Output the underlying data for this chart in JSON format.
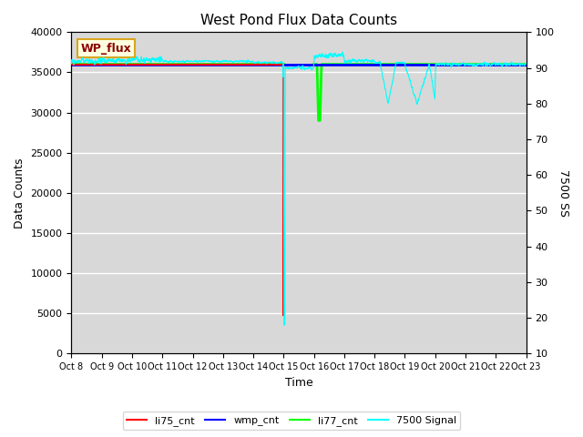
{
  "title": "West Pond Flux Data Counts",
  "xlabel": "Time",
  "ylabel_left": "Data Counts",
  "ylabel_right": "7500 SS",
  "annotation_box": "WP_flux",
  "ylim_left": [
    0,
    40000
  ],
  "ylim_right": [
    10,
    100
  ],
  "x_tick_labels": [
    "Oct 8",
    "Oct 9",
    "Oct 10",
    "Oct 11",
    "Oct 12",
    "Oct 13",
    "Oct 14",
    "Oct 15",
    "Oct 16",
    "Oct 17",
    "Oct 18",
    "Oct 19",
    "Oct 20",
    "Oct 21",
    "Oct 22",
    "Oct 23"
  ],
  "background_color": "#d8d8d8",
  "legend_labels": [
    "li75_cnt",
    "wmp_cnt",
    "li77_cnt",
    "7500 Signal"
  ],
  "li75_cnt_color": "red",
  "li77_cnt_color": "lime",
  "wmp_cnt_color": "blue",
  "signal_color": "cyan",
  "flat_value": 36000,
  "signal_base": 91.5,
  "num_days": 15,
  "yticks_left": [
    0,
    5000,
    10000,
    15000,
    20000,
    25000,
    30000,
    35000,
    40000
  ],
  "yticks_right": [
    10,
    20,
    30,
    40,
    50,
    60,
    70,
    80,
    90,
    100
  ]
}
